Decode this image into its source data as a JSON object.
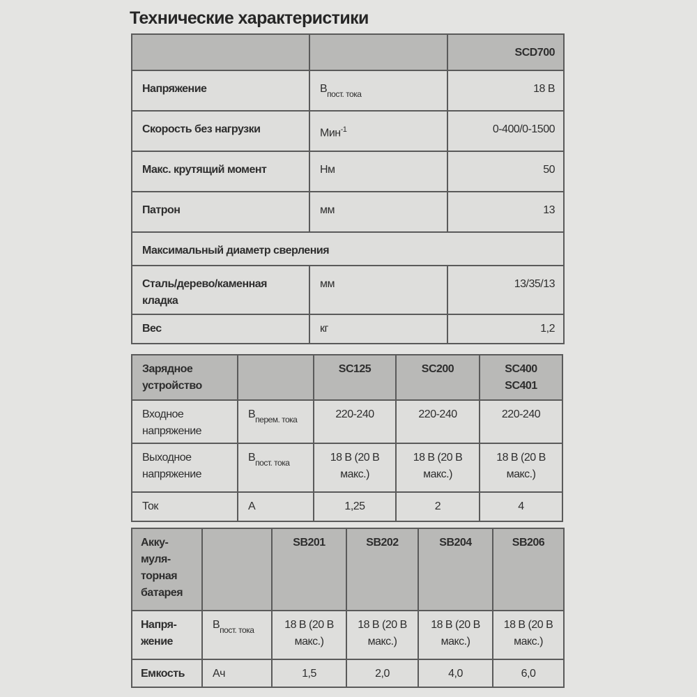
{
  "title": "Технические характеристики",
  "drill_table": {
    "model": "SCD700",
    "rows": [
      {
        "label": "Напряжение",
        "unit": "В",
        "unit_sub": "пост. тока",
        "value": "18 В"
      },
      {
        "label": "Скорость без нагрузки",
        "unit": "Мин",
        "unit_sup": "-1",
        "value": "0-400/0-1500"
      },
      {
        "label": "Макс. крутящий момент",
        "unit": "Нм",
        "value": "50"
      },
      {
        "label": "Патрон",
        "unit": "мм",
        "value": "13"
      },
      {
        "section": "Максимальный диаметр сверления"
      },
      {
        "label": "Сталь/дерево/каменная кладка",
        "unit": "мм",
        "value": "13/35/13"
      },
      {
        "label": "Вес",
        "unit": "кг",
        "value": "1,2"
      }
    ]
  },
  "charger_table": {
    "header": "Зарядное устройство",
    "models": [
      "SC125",
      "SC200",
      "SC400\nSC401"
    ],
    "rows": [
      {
        "label": "Входное напряжение",
        "unit": "В",
        "unit_sub": "перем. тока",
        "values": [
          "220-240",
          "220-240",
          "220-240"
        ]
      },
      {
        "label": "Выходное напряжение",
        "unit": "В",
        "unit_sub": "пост. тока",
        "values": [
          "18 В (20 В макс.)",
          "18 В (20 В макс.)",
          "18 В (20 В макс.)"
        ]
      },
      {
        "label": "Ток",
        "unit": "А",
        "values": [
          "1,25",
          "2",
          "4"
        ]
      }
    ]
  },
  "battery_table": {
    "header": "Акку-муля-торная батарея",
    "models": [
      "SB201",
      "SB202",
      "SB204",
      "SB206"
    ],
    "rows": [
      {
        "label": "Напря-жение",
        "unit": "В",
        "unit_sub": "пост. тока",
        "values": [
          "18 В (20 В макс.)",
          "18 В (20 В макс.)",
          "18 В (20 В макс.)",
          "18 В (20 В макс.)"
        ]
      },
      {
        "label": "Емкость",
        "unit": "Ач",
        "values": [
          "1,5",
          "2,0",
          "4,0",
          "6,0"
        ]
      }
    ]
  }
}
